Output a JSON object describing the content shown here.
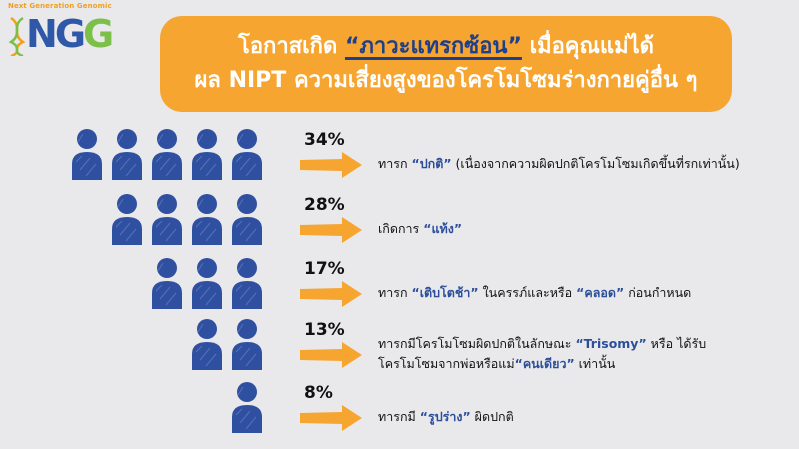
{
  "logo": {
    "tagline": "Next Generation Genomic",
    "letters": [
      "N",
      "G",
      "G"
    ]
  },
  "title": {
    "line1_prefix": "โอกาสเกิด ",
    "line1_highlight": "“ภาวะแทรกซ้อน”",
    "line1_suffix": " เมื่อคุณแม่ได้",
    "line2": "ผล NIPT ความเสี่ยงสูงของโครโมโซมร่างกายคู่อื่น ๆ"
  },
  "rows": [
    {
      "percent": "34%",
      "people": 5,
      "parts": [
        [
          {
            "t": "ทารก "
          },
          {
            "t": "“ปกติ”",
            "q": true
          },
          {
            "t": " (เนื่องจากความผิดปกติโครโมโซมเกิดขึ้นที่รกเท่านั้น)"
          }
        ]
      ]
    },
    {
      "percent": "28%",
      "people": 4,
      "parts": [
        [
          {
            "t": "เกิดการ "
          },
          {
            "t": "“แท้ง”",
            "q": true
          }
        ]
      ]
    },
    {
      "percent": "17%",
      "people": 3,
      "parts": [
        [
          {
            "t": "ทารก "
          },
          {
            "t": "“เติบโตช้า”",
            "q": true
          },
          {
            "t": " ในครรภ์และหรือ "
          },
          {
            "t": "“คลอด”",
            "q": true
          },
          {
            "t": " ก่อนกำหนด"
          }
        ]
      ]
    },
    {
      "percent": "13%",
      "people": 2,
      "parts": [
        [
          {
            "t": "ทารกมีโครโมโซมผิดปกติในลักษณะ "
          },
          {
            "t": "“Trisomy”",
            "q": true
          },
          {
            "t": " หรือ ได้รับ"
          }
        ],
        [
          {
            "t": "โครโมโซมจากพ่อหรือแม่"
          },
          {
            "t": "“คนเดียว”",
            "q": true
          },
          {
            "t": " เท่านั้น"
          }
        ]
      ]
    },
    {
      "percent": "8%",
      "people": 1,
      "parts": [
        [
          {
            "t": "ทารกมี "
          },
          {
            "t": "“รูปร่าง”",
            "q": true
          },
          {
            "t": " ผิดปกติ"
          }
        ]
      ]
    }
  ],
  "colors": {
    "banner": "#f7a531",
    "person": "#2f4fa0",
    "arrow": "#f7a531",
    "highlight": "#2d4f9a",
    "background": "#e9e9eb"
  },
  "icons": {
    "person": "person-icon",
    "arrow": "arrow-right-icon"
  }
}
